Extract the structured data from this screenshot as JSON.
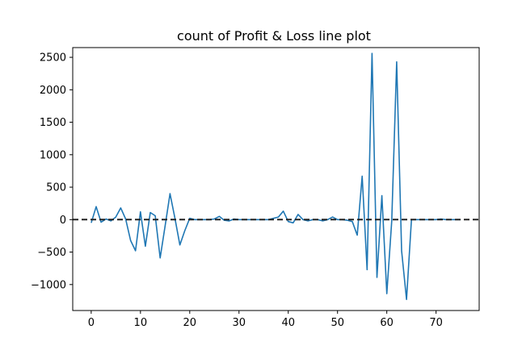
{
  "chart_data": {
    "type": "line",
    "title": "count of Profit & Loss line plot",
    "xlabel": "",
    "ylabel": "",
    "xlim": [
      -3.75,
      78.75
    ],
    "ylim": [
      -1400,
      2650
    ],
    "xticks": [
      0,
      10,
      20,
      30,
      40,
      50,
      60,
      70
    ],
    "yticks": [
      -1000,
      -500,
      0,
      500,
      1000,
      1500,
      2000,
      2500
    ],
    "grid": false,
    "reference_line": {
      "y": 0,
      "style": "dashed",
      "color": "#222222"
    },
    "series": [
      {
        "color": "#1f77b4",
        "x": [
          0,
          1,
          2,
          3,
          4,
          5,
          6,
          7,
          8,
          9,
          10,
          11,
          12,
          13,
          14,
          15,
          16,
          17,
          18,
          19,
          20,
          21,
          22,
          23,
          24,
          25,
          26,
          27,
          28,
          29,
          30,
          31,
          32,
          33,
          34,
          35,
          36,
          37,
          38,
          39,
          40,
          41,
          42,
          43,
          44,
          45,
          46,
          47,
          48,
          49,
          50,
          51,
          52,
          53,
          54,
          55,
          56,
          57,
          58,
          59,
          60,
          61,
          62,
          63,
          64,
          65,
          66,
          67,
          68,
          69,
          70,
          71,
          72,
          73,
          74,
          75
        ],
        "y": [
          -50,
          200,
          -40,
          10,
          -20,
          40,
          180,
          10,
          -320,
          -480,
          120,
          -410,
          110,
          60,
          -590,
          -100,
          400,
          20,
          -390,
          -170,
          20,
          0,
          0,
          0,
          0,
          10,
          50,
          -10,
          -20,
          10,
          0,
          0,
          0,
          0,
          0,
          0,
          0,
          20,
          40,
          130,
          -30,
          -50,
          80,
          0,
          -20,
          0,
          0,
          -20,
          0,
          40,
          0,
          0,
          -10,
          -30,
          -240,
          670,
          -770,
          2560,
          -890,
          370,
          -1140,
          -20,
          2430,
          -480,
          -1230,
          0,
          0,
          0,
          0,
          0,
          0,
          10,
          0,
          0,
          0,
          0
        ]
      }
    ]
  }
}
